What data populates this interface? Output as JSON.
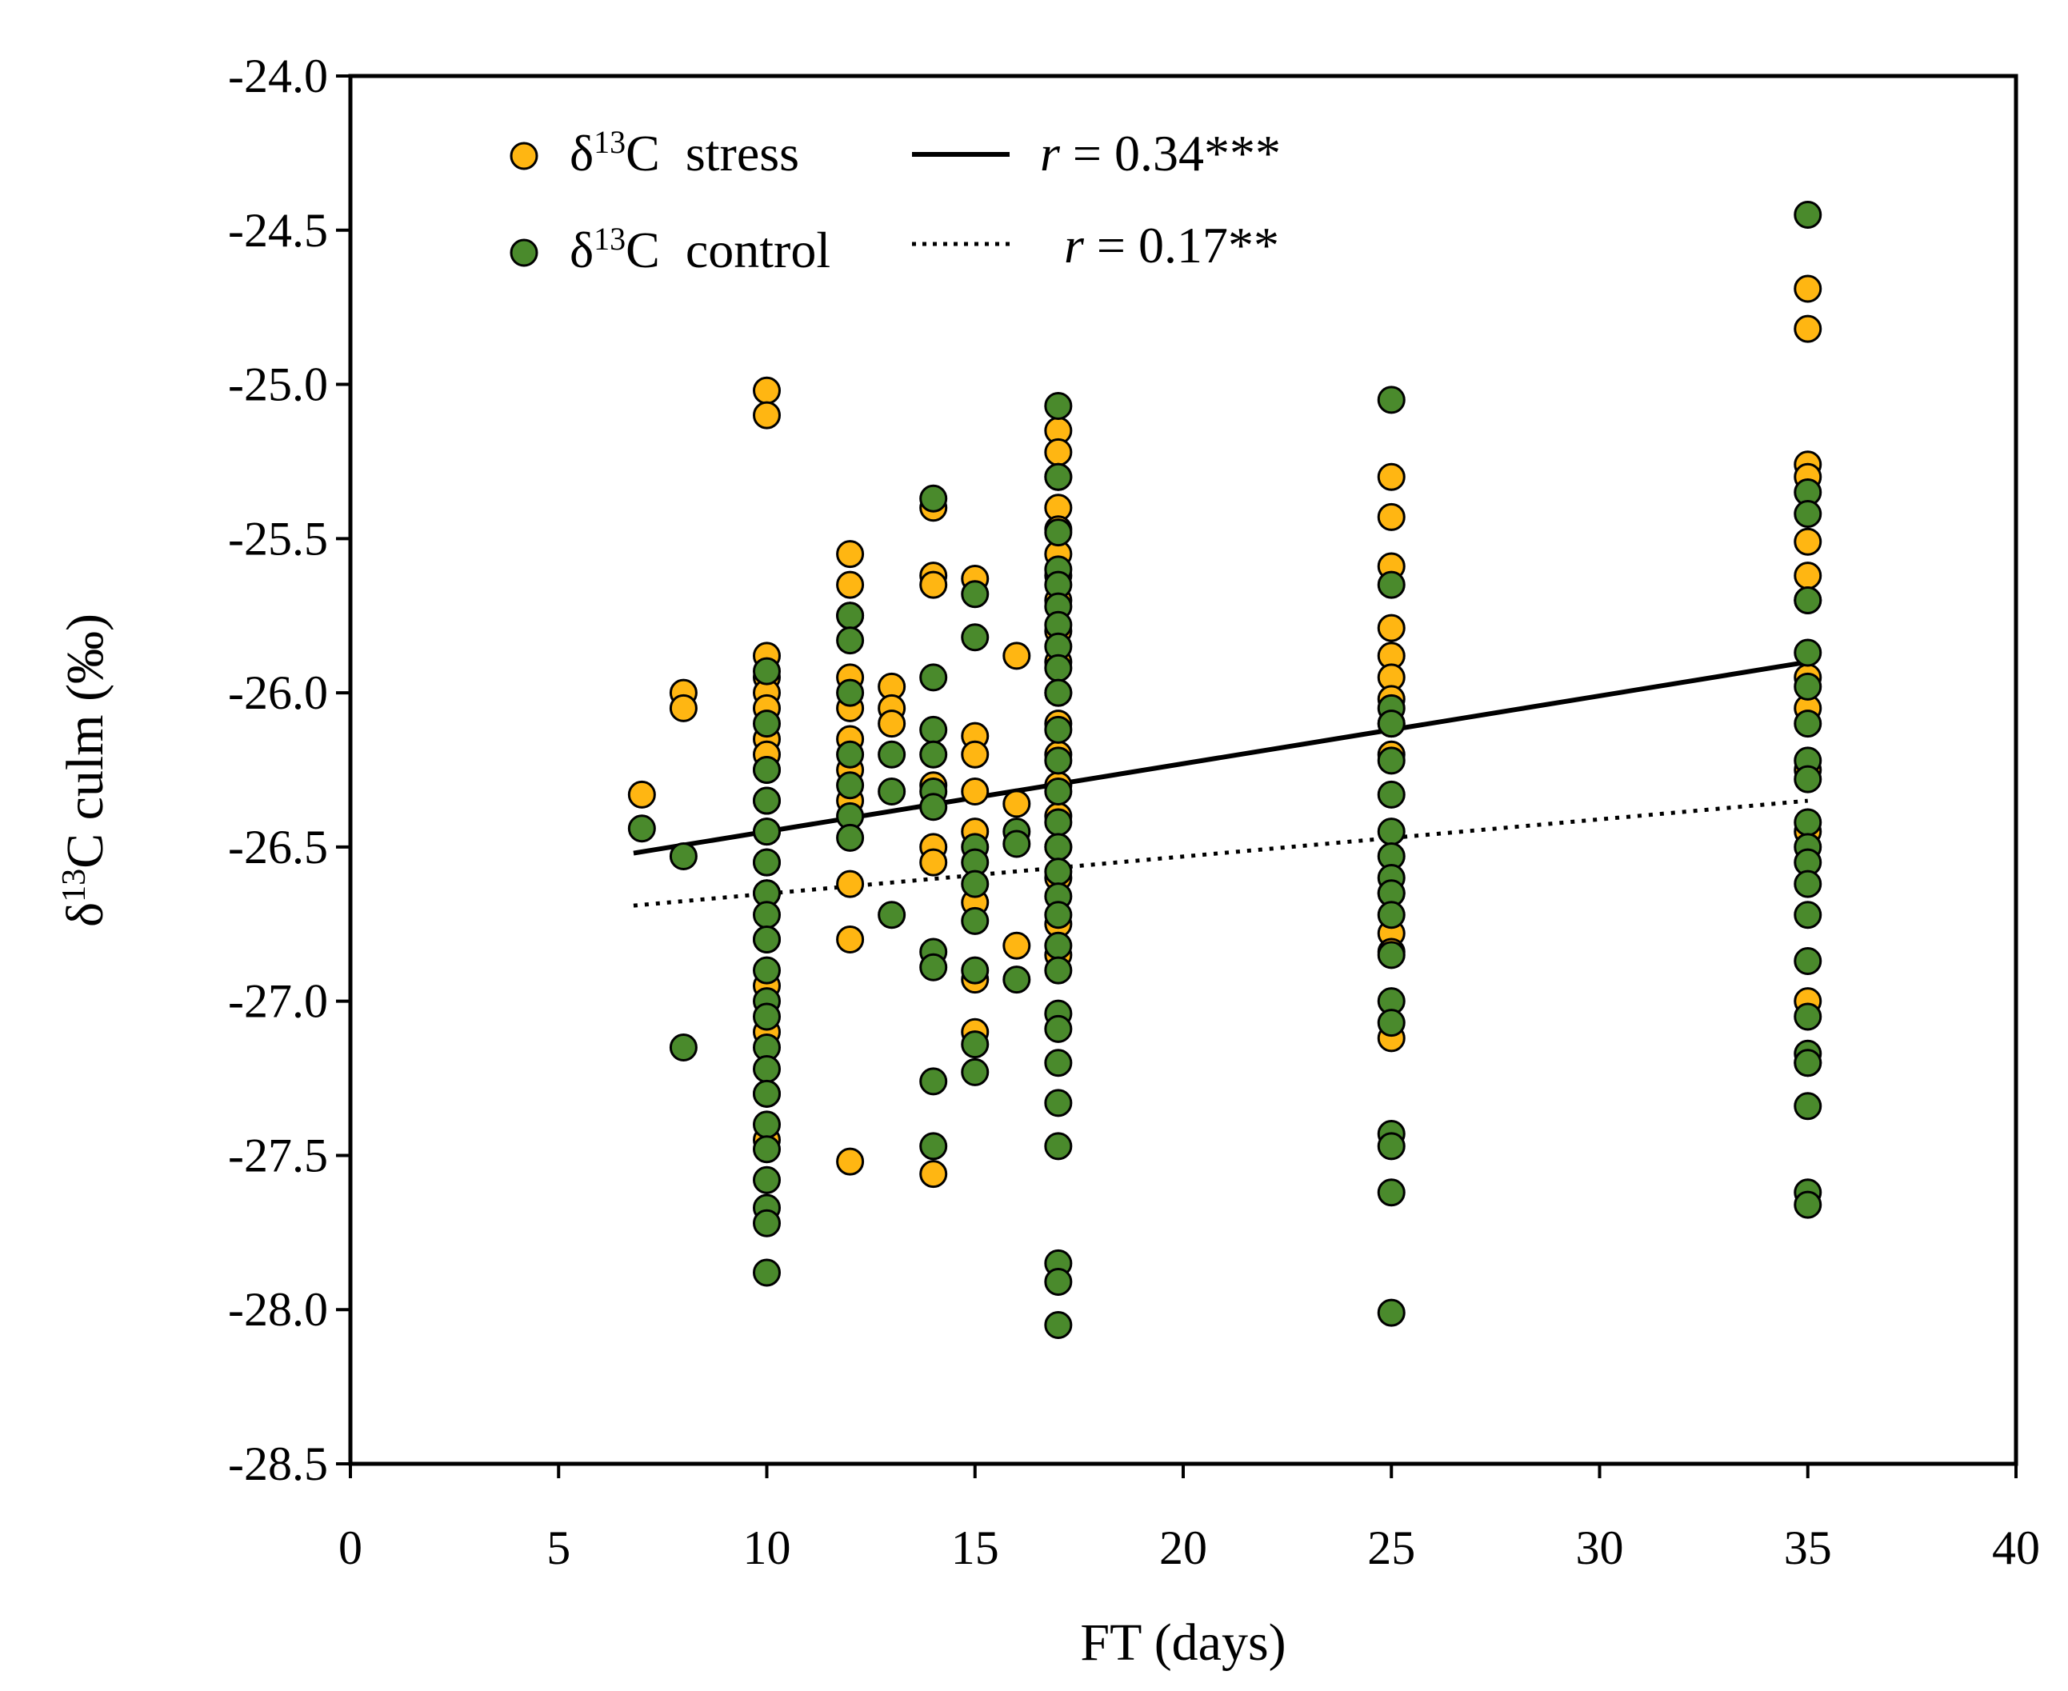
{
  "chart_data": {
    "type": "scatter",
    "xlabel": "FT (days)",
    "ylabel_parts": {
      "prefix": "δ",
      "sup": "13",
      "suffix": "C culm (‰)"
    },
    "xlim": [
      0,
      40
    ],
    "ylim": [
      -28.5,
      -24.0
    ],
    "xticks": [
      "0",
      "5",
      "10",
      "15",
      "20",
      "25",
      "30",
      "35",
      "40"
    ],
    "yticks": [
      "-24.0",
      "-24.5",
      "-25.0",
      "-25.5",
      "-26.0",
      "-26.5",
      "-27.0",
      "-27.5",
      "-28.0",
      "-28.5"
    ],
    "grid": false,
    "legend_position": "top-left",
    "series": [
      {
        "name": "stress",
        "legend_prefix": "δ",
        "legend_sup": "13",
        "legend_suffix": "C  stress",
        "color": "#FFB612",
        "line_style": "solid",
        "r_label": "r",
        "r_value": " = 0.34***",
        "fit": {
          "x0": 6.8,
          "y0": -26.52,
          "x1": 35,
          "y1": -25.9
        },
        "points": {
          "7": [
            -26.33
          ],
          "8": [
            -26.0,
            -26.05
          ],
          "10": [
            -25.02,
            -25.1,
            -25.88,
            -25.95,
            -26.0,
            -26.05,
            -26.15,
            -26.2,
            -26.25,
            -26.35,
            -26.45,
            -26.55,
            -26.65,
            -26.8,
            -26.95,
            -27.1,
            -27.3,
            -27.45
          ],
          "12": [
            -25.55,
            -25.65,
            -25.75,
            -25.95,
            -26.05,
            -26.15,
            -26.25,
            -26.35,
            -26.62,
            -26.8,
            -27.52
          ],
          "13": [
            -25.98,
            -26.05,
            -26.1
          ],
          "14": [
            -25.4,
            -25.62,
            -25.65,
            -26.3,
            -26.5,
            -26.55,
            -27.56
          ],
          "15": [
            -25.63,
            -26.14,
            -26.2,
            -26.32,
            -26.45,
            -26.68,
            -26.93,
            -27.1
          ],
          "16": [
            -25.88,
            -26.36,
            -26.82
          ],
          "17": [
            -25.15,
            -25.22,
            -25.3,
            -25.4,
            -25.47,
            -25.55,
            -25.62,
            -25.7,
            -25.8,
            -25.9,
            -26.0,
            -26.1,
            -26.2,
            -26.3,
            -26.4,
            -26.5,
            -26.6,
            -26.75,
            -26.85
          ],
          "25": [
            -25.3,
            -25.43,
            -25.59,
            -25.79,
            -25.88,
            -25.95,
            -26.02,
            -26.1,
            -26.2,
            -26.65,
            -26.78,
            -26.84,
            -27.12
          ],
          "35": [
            -24.69,
            -24.82,
            -25.26,
            -25.3,
            -25.51,
            -25.62,
            -25.7,
            -25.95,
            -26.05,
            -26.25,
            -26.45,
            -27.0,
            -27.2
          ]
        }
      },
      {
        "name": "control",
        "legend_prefix": "δ",
        "legend_sup": "13",
        "legend_suffix": "C  control",
        "color": "#4A8A2C",
        "line_style": "dotted",
        "r_label": "r",
        "r_value": " = 0.17**",
        "fit": {
          "x0": 6.8,
          "y0": -26.69,
          "x1": 35,
          "y1": -26.35
        },
        "points": {
          "7": [
            -26.44
          ],
          "8": [
            -26.53,
            -27.15
          ],
          "10": [
            -25.93,
            -26.1,
            -26.25,
            -26.35,
            -26.45,
            -26.55,
            -26.65,
            -26.72,
            -26.8,
            -26.9,
            -27.0,
            -27.05,
            -27.15,
            -27.22,
            -27.3,
            -27.4,
            -27.48,
            -27.58,
            -27.67,
            -27.72,
            -27.88
          ],
          "12": [
            -25.75,
            -25.83,
            -26.0,
            -26.2,
            -26.3,
            -26.4,
            -26.47
          ],
          "13": [
            -26.2,
            -26.32,
            -26.72
          ],
          "14": [
            -25.37,
            -25.95,
            -26.12,
            -26.2,
            -26.32,
            -26.37,
            -26.84,
            -26.89,
            -27.26,
            -27.47
          ],
          "15": [
            -25.68,
            -25.82,
            -26.5,
            -26.55,
            -26.62,
            -26.74,
            -26.9,
            -27.14,
            -27.23
          ],
          "16": [
            -26.45,
            -26.49,
            -26.93
          ],
          "17": [
            -25.07,
            -25.3,
            -25.48,
            -25.6,
            -25.65,
            -25.72,
            -25.78,
            -25.85,
            -25.92,
            -26.0,
            -26.12,
            -26.22,
            -26.32,
            -26.42,
            -26.5,
            -26.58,
            -26.66,
            -26.72,
            -26.82,
            -26.9,
            -27.04,
            -27.09,
            -27.2,
            -27.33,
            -27.47,
            -27.85,
            -27.91,
            -28.05
          ],
          "25": [
            -25.05,
            -25.65,
            -26.05,
            -26.1,
            -26.22,
            -26.33,
            -26.45,
            -26.53,
            -26.6,
            -26.65,
            -26.72,
            -26.85,
            -27.0,
            -27.07,
            -27.43,
            -27.47,
            -27.62,
            -28.01
          ],
          "35": [
            -24.45,
            -25.35,
            -25.42,
            -25.7,
            -25.87,
            -25.98,
            -26.1,
            -26.22,
            -26.28,
            -26.42,
            -26.5,
            -26.55,
            -26.62,
            -26.72,
            -26.87,
            -27.05,
            -27.17,
            -27.2,
            -27.34,
            -27.62,
            -27.66
          ]
        }
      }
    ]
  }
}
